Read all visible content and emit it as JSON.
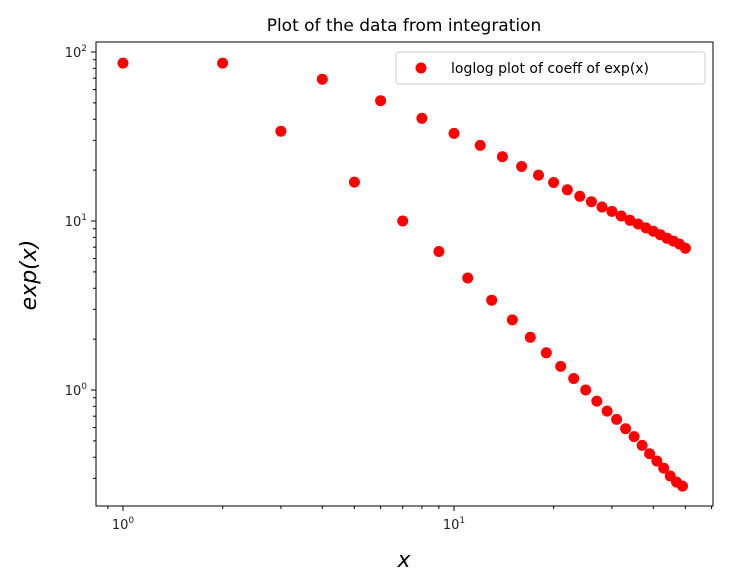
{
  "chart_data": {
    "type": "scatter",
    "title": "Plot of the data from integration",
    "xlabel": "x",
    "ylabel": "exp(x)",
    "xscale": "log",
    "yscale": "log",
    "xlim": [
      0.8,
      55
    ],
    "ylim": [
      0.2,
      120
    ],
    "grid": false,
    "legend_position": "top-right",
    "marker_color": "#ff0000",
    "x_ticks": [
      {
        "base": "10",
        "exp": "0"
      },
      {
        "base": "10",
        "exp": "1"
      }
    ],
    "y_ticks": [
      {
        "base": "10",
        "exp": "0"
      },
      {
        "base": "10",
        "exp": "1"
      },
      {
        "base": "10",
        "exp": "2"
      }
    ],
    "series": [
      {
        "name": "loglog plot of coeff of exp(x)",
        "points": [
          [
            1,
            86.0
          ],
          [
            2,
            86.0
          ],
          [
            3,
            34.0
          ],
          [
            4,
            69.0
          ],
          [
            5,
            17.0
          ],
          [
            6,
            51.5
          ],
          [
            7,
            10.0
          ],
          [
            8,
            40.5
          ],
          [
            9,
            6.6
          ],
          [
            10,
            33.0
          ],
          [
            11,
            4.6
          ],
          [
            12,
            28.0
          ],
          [
            13,
            3.4
          ],
          [
            14,
            24.0
          ],
          [
            15,
            2.6
          ],
          [
            16,
            21.0
          ],
          [
            17,
            2.05
          ],
          [
            18,
            18.7
          ],
          [
            19,
            1.66
          ],
          [
            20,
            16.9
          ],
          [
            21,
            1.38
          ],
          [
            22,
            15.3
          ],
          [
            23,
            1.17
          ],
          [
            24,
            14.0
          ],
          [
            25,
            1.0
          ],
          [
            26,
            13.0
          ],
          [
            27,
            0.86
          ],
          [
            28,
            12.1
          ],
          [
            29,
            0.75
          ],
          [
            30,
            11.4
          ],
          [
            31,
            0.67
          ],
          [
            32,
            10.7
          ],
          [
            33,
            0.59
          ],
          [
            34,
            10.1
          ],
          [
            35,
            0.53
          ],
          [
            36,
            9.6
          ],
          [
            37,
            0.47
          ],
          [
            38,
            9.1
          ],
          [
            39,
            0.42
          ],
          [
            40,
            8.7
          ],
          [
            41,
            0.38
          ],
          [
            42,
            8.3
          ],
          [
            43,
            0.345
          ],
          [
            44,
            7.9
          ],
          [
            45,
            0.31
          ],
          [
            46,
            7.6
          ],
          [
            47,
            0.285
          ],
          [
            48,
            7.3
          ],
          [
            49,
            0.27
          ],
          [
            50,
            6.9
          ]
        ]
      }
    ]
  }
}
